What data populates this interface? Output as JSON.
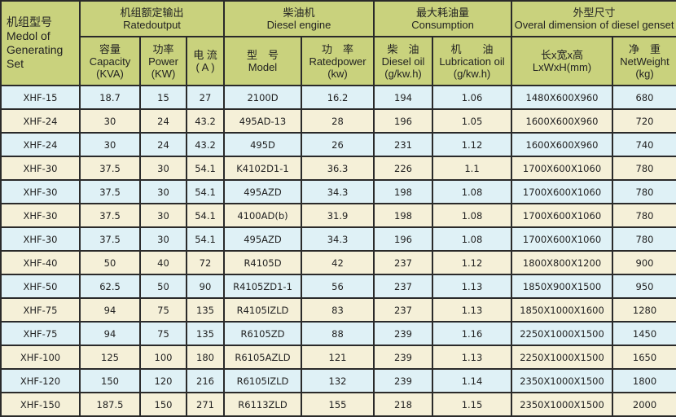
{
  "header": {
    "model": {
      "zh": "机组型号",
      "en": "Medol of Generating Set"
    },
    "rated_output": {
      "zh": "机组额定输出",
      "en": "Ratedoutput"
    },
    "diesel_engine": {
      "zh": "柴油机",
      "en": "Diesel engine"
    },
    "consumption": {
      "zh": "最大耗油量",
      "en": "Consumption"
    },
    "dimension": {
      "zh": "外型尺寸",
      "en": "Overal dimension of diesel genset"
    },
    "sub": [
      {
        "zh": "容量",
        "en": "Capacity",
        "unit": "(KVA)"
      },
      {
        "zh": "功率",
        "en": "Power",
        "unit": "(KW)"
      },
      {
        "zh": "电 流",
        "en": "",
        "unit": "( A )"
      },
      {
        "zh": "型　号",
        "en": "Model",
        "unit": ""
      },
      {
        "zh": "功　率",
        "en": "Ratedpower",
        "unit": "(kw)"
      },
      {
        "zh": "柴　油",
        "en": "Diesel oil",
        "unit": "(g/kw.h)"
      },
      {
        "zh": "机　　油",
        "en": "Lubrication oil",
        "unit": "(g/kw.h)"
      },
      {
        "zh": "长x宽x高",
        "en": "LxWxH(mm)",
        "unit": ""
      },
      {
        "zh": "净　重",
        "en": "NetWeight",
        "unit": "(kg)"
      }
    ]
  },
  "colors": {
    "header": "#c9d27d",
    "row_odd": "#dff1f6",
    "row_even": "#f5f0d8",
    "border": "#2a2a2a"
  },
  "rows": [
    [
      "XHF-15",
      "18.7",
      "15",
      "27",
      "2100D",
      "16.2",
      "194",
      "1.06",
      "1480X600X960",
      "680"
    ],
    [
      "XHF-24",
      "30",
      "24",
      "43.2",
      "495AD-13",
      "28",
      "196",
      "1.05",
      "1600X600X960",
      "720"
    ],
    [
      "XHF-24",
      "30",
      "24",
      "43.2",
      "495D",
      "26",
      "231",
      "1.12",
      "1600X600X960",
      "740"
    ],
    [
      "XHF-30",
      "37.5",
      "30",
      "54.1",
      "K4102D1-1",
      "36.3",
      "226",
      "1.1",
      "1700X600X1060",
      "780"
    ],
    [
      "XHF-30",
      "37.5",
      "30",
      "54.1",
      "495AZD",
      "34.3",
      "198",
      "1.08",
      "1700X600X1060",
      "780"
    ],
    [
      "XHF-30",
      "37.5",
      "30",
      "54.1",
      "4100AD(b)",
      "31.9",
      "198",
      "1.08",
      "1700X600X1060",
      "780"
    ],
    [
      "XHF-30",
      "37.5",
      "30",
      "54.1",
      "495AZD",
      "34.3",
      "196",
      "1.08",
      "1700X600X1060",
      "780"
    ],
    [
      "XHF-40",
      "50",
      "40",
      "72",
      "R4105D",
      "42",
      "237",
      "1.12",
      "1800X800X1200",
      "900"
    ],
    [
      "XHF-50",
      "62.5",
      "50",
      "90",
      "R4105ZD1-1",
      "56",
      "237",
      "1.13",
      "1850X900X1500",
      "950"
    ],
    [
      "XHF-75",
      "94",
      "75",
      "135",
      "R4105IZLD",
      "83",
      "237",
      "1.13",
      "1850X1000X1600",
      "1280"
    ],
    [
      "XHF-75",
      "94",
      "75",
      "135",
      "R6105ZD",
      "88",
      "239",
      "1.16",
      "2250X1000X1500",
      "1450"
    ],
    [
      "XHF-100",
      "125",
      "100",
      "180",
      "R6105AZLD",
      "121",
      "239",
      "1.13",
      "2250X1000X1500",
      "1650"
    ],
    [
      "XHF-120",
      "150",
      "120",
      "216",
      "R6105IZLD",
      "132",
      "239",
      "1.14",
      "2350X1000X1500",
      "1800"
    ],
    [
      "XHF-150",
      "187.5",
      "150",
      "271",
      "R6113ZLD",
      "155",
      "218",
      "1.15",
      "2350X1000X1500",
      "2000"
    ]
  ]
}
